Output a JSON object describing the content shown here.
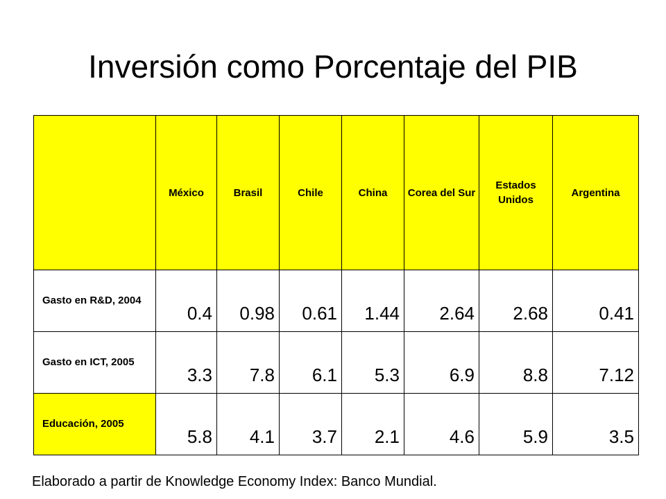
{
  "title": "Inversión como Porcentaje del PIB",
  "table": {
    "columns": [
      "México",
      "Brasil",
      "Chile",
      "China",
      "Corea del Sur",
      "Estados Unidos",
      "Argentina"
    ],
    "rows": [
      {
        "label": "Gasto en R&D, 2004",
        "values": [
          "0.4",
          "0.98",
          "0.61",
          "1.44",
          "2.64",
          "2.68",
          "0.41"
        ]
      },
      {
        "label": "Gasto en ICT, 2005",
        "values": [
          "3.3",
          "7.8",
          "6.1",
          "5.3",
          "6.9",
          "8.8",
          "7.12"
        ]
      },
      {
        "label": "Educación, 2005",
        "values": [
          "5.8",
          "4.1",
          "3.7",
          "2.1",
          "4.6",
          "5.9",
          "3.5"
        ]
      }
    ]
  },
  "source_note": "Elaborado a partir de Knowledge Economy Index: Banco Mundial.",
  "colors": {
    "header_fill": "#ffff00",
    "background": "#ffffff",
    "text": "#000000"
  }
}
